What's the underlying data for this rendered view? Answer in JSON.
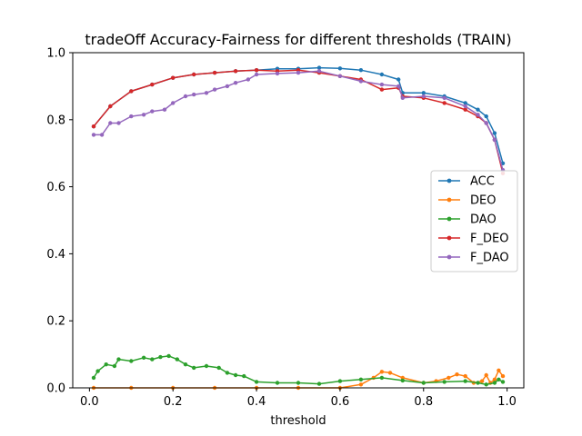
{
  "chart_data": {
    "type": "line",
    "title": "tradeOff Accuracy-Fairness for different thresholds (TRAIN)",
    "xlabel": "threshold",
    "ylabel": "",
    "xlim": [
      -0.04,
      1.04
    ],
    "ylim": [
      0,
      1
    ],
    "xticks": [
      0.0,
      0.2,
      0.4,
      0.6,
      0.8,
      1.0
    ],
    "xtick_labels": [
      "0.0",
      "0.2",
      "0.4",
      "0.6",
      "0.8",
      "1.0"
    ],
    "yticks": [
      0.0,
      0.2,
      0.4,
      0.6,
      0.8,
      1.0
    ],
    "ytick_labels": [
      "0.0",
      "0.2",
      "0.4",
      "0.6",
      "0.8",
      "1.0"
    ],
    "grid": false,
    "legend_position": "center-right",
    "series": [
      {
        "name": "ACC",
        "color": "#1f77b4",
        "x": [
          0.01,
          0.05,
          0.1,
          0.15,
          0.2,
          0.25,
          0.3,
          0.35,
          0.4,
          0.45,
          0.5,
          0.55,
          0.6,
          0.65,
          0.7,
          0.74,
          0.75,
          0.8,
          0.85,
          0.9,
          0.93,
          0.95,
          0.97,
          0.99
        ],
        "y": [
          0.78,
          0.84,
          0.885,
          0.905,
          0.925,
          0.935,
          0.94,
          0.945,
          0.948,
          0.952,
          0.952,
          0.955,
          0.953,
          0.948,
          0.935,
          0.92,
          0.88,
          0.88,
          0.87,
          0.85,
          0.83,
          0.81,
          0.76,
          0.67
        ]
      },
      {
        "name": "DEO",
        "color": "#ff7f0e",
        "x": [
          0.01,
          0.1,
          0.2,
          0.3,
          0.4,
          0.5,
          0.6,
          0.65,
          0.68,
          0.7,
          0.72,
          0.75,
          0.8,
          0.83,
          0.86,
          0.88,
          0.9,
          0.92,
          0.94,
          0.95,
          0.96,
          0.97,
          0.98,
          0.99
        ],
        "y": [
          0.0,
          0.0,
          0.0,
          0.0,
          0.0,
          0.0,
          0.0,
          0.01,
          0.03,
          0.048,
          0.045,
          0.03,
          0.015,
          0.02,
          0.03,
          0.04,
          0.035,
          0.015,
          0.02,
          0.038,
          0.015,
          0.025,
          0.052,
          0.035
        ]
      },
      {
        "name": "DAO",
        "color": "#2ca02c",
        "x": [
          0.01,
          0.02,
          0.04,
          0.06,
          0.07,
          0.1,
          0.13,
          0.15,
          0.17,
          0.19,
          0.21,
          0.23,
          0.25,
          0.28,
          0.31,
          0.33,
          0.35,
          0.37,
          0.4,
          0.45,
          0.5,
          0.55,
          0.6,
          0.65,
          0.7,
          0.75,
          0.8,
          0.85,
          0.9,
          0.93,
          0.95,
          0.97,
          0.98,
          0.99
        ],
        "y": [
          0.03,
          0.05,
          0.07,
          0.065,
          0.085,
          0.08,
          0.09,
          0.085,
          0.092,
          0.095,
          0.085,
          0.07,
          0.06,
          0.065,
          0.06,
          0.045,
          0.038,
          0.035,
          0.018,
          0.015,
          0.015,
          0.012,
          0.02,
          0.025,
          0.03,
          0.022,
          0.015,
          0.018,
          0.02,
          0.015,
          0.01,
          0.015,
          0.025,
          0.018
        ]
      },
      {
        "name": "F_DEO",
        "color": "#d62728",
        "x": [
          0.01,
          0.05,
          0.1,
          0.15,
          0.2,
          0.25,
          0.3,
          0.35,
          0.4,
          0.45,
          0.5,
          0.55,
          0.6,
          0.65,
          0.7,
          0.74,
          0.75,
          0.8,
          0.85,
          0.9,
          0.93,
          0.95,
          0.97,
          0.99
        ],
        "y": [
          0.78,
          0.84,
          0.885,
          0.905,
          0.925,
          0.935,
          0.94,
          0.945,
          0.948,
          0.945,
          0.948,
          0.94,
          0.93,
          0.92,
          0.89,
          0.895,
          0.87,
          0.865,
          0.85,
          0.83,
          0.81,
          0.79,
          0.74,
          0.64
        ]
      },
      {
        "name": "F_DAO",
        "color": "#9467bd",
        "x": [
          0.01,
          0.03,
          0.05,
          0.07,
          0.1,
          0.13,
          0.15,
          0.18,
          0.2,
          0.23,
          0.25,
          0.28,
          0.3,
          0.33,
          0.35,
          0.38,
          0.4,
          0.45,
          0.5,
          0.55,
          0.6,
          0.65,
          0.7,
          0.74,
          0.75,
          0.8,
          0.85,
          0.9,
          0.93,
          0.95,
          0.97,
          0.99
        ],
        "y": [
          0.755,
          0.755,
          0.79,
          0.79,
          0.81,
          0.815,
          0.825,
          0.83,
          0.85,
          0.87,
          0.875,
          0.88,
          0.89,
          0.9,
          0.91,
          0.92,
          0.935,
          0.938,
          0.94,
          0.945,
          0.93,
          0.915,
          0.905,
          0.9,
          0.865,
          0.87,
          0.865,
          0.84,
          0.815,
          0.79,
          0.74,
          0.65
        ]
      }
    ]
  }
}
